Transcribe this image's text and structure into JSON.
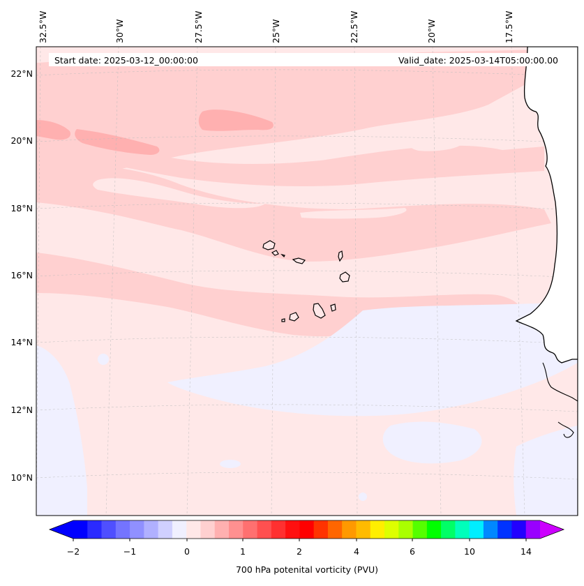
{
  "map": {
    "top_labels": [
      "32.5°W",
      "30°W",
      "27.5°W",
      "25°W",
      "22.5°W",
      "20°W",
      "17.5°W"
    ],
    "lat_labels": [
      "22°N",
      "20°N",
      "18°N",
      "16°N",
      "14°N",
      "12°N",
      "10°N"
    ],
    "start_date": "Start date: 2025-03-12_00:00:00",
    "valid_date": "Valid_date: 2025-03-14T05:00:00.00"
  },
  "colorbar": {
    "tick_labels": [
      "−2",
      "−1",
      "0",
      "1",
      "2",
      "4",
      "6",
      "10",
      "14"
    ],
    "label": "700 hPa potenital vorticity (PVU)",
    "colors": [
      "#0000ff",
      "#2a2aff",
      "#4f4fff",
      "#7474ff",
      "#9090ff",
      "#b0b0ff",
      "#d0d0ff",
      "#f0f0ff",
      "#ffe8e8",
      "#ffd0d0",
      "#ffb0b0",
      "#ff9090",
      "#ff7070",
      "#ff5050",
      "#ff3030",
      "#ff1010",
      "#ff0000",
      "#ff3300",
      "#ff6600",
      "#ff9900",
      "#ffbb00",
      "#ffee00",
      "#ddff00",
      "#aaff00",
      "#55ff00",
      "#00ff00",
      "#00ff66",
      "#00ffbb",
      "#00eeff",
      "#0088ff",
      "#0033ff",
      "#2200ff",
      "#9900ff"
    ],
    "extend_min_color": "#0000ff",
    "extend_max_color": "#cc00ff"
  },
  "field_colors": {
    "background": "#ffe8e8",
    "light_band": "#ffd0d0",
    "strong_band": "#ffb0b0",
    "negative": "#f0f0ff"
  }
}
